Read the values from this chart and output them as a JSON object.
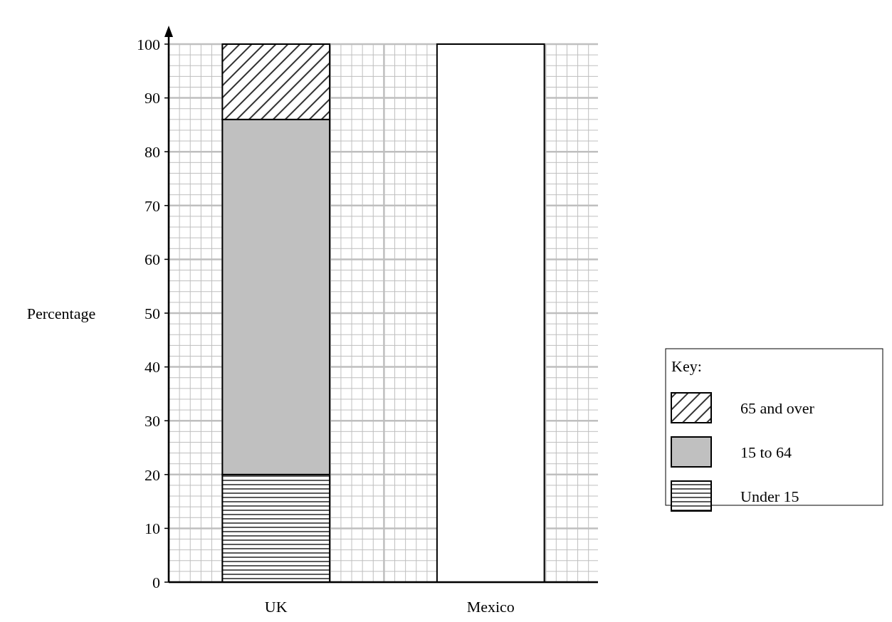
{
  "chart_data": {
    "type": "bar",
    "stacked": true,
    "ylabel": "Percentage",
    "legend_title": "Key:",
    "categories": [
      "UK",
      "Mexico"
    ],
    "series": [
      {
        "name": "Under 15",
        "color": "#000000",
        "values": [
          20,
          null
        ]
      },
      {
        "name": "15 to 64",
        "color": "#c0c0c0",
        "values": [
          66,
          null
        ]
      },
      {
        "name": "65 and over",
        "color": "#000000",
        "values": [
          14,
          null
        ]
      },
      {
        "color": "#ffffff",
        "values": [
          null,
          100
        ]
      }
    ],
    "ylim": [
      0,
      100
    ],
    "yticks": [
      0,
      10,
      20,
      30,
      40,
      50,
      60,
      70,
      80,
      90,
      100
    ],
    "grid": true,
    "legend": "right"
  }
}
